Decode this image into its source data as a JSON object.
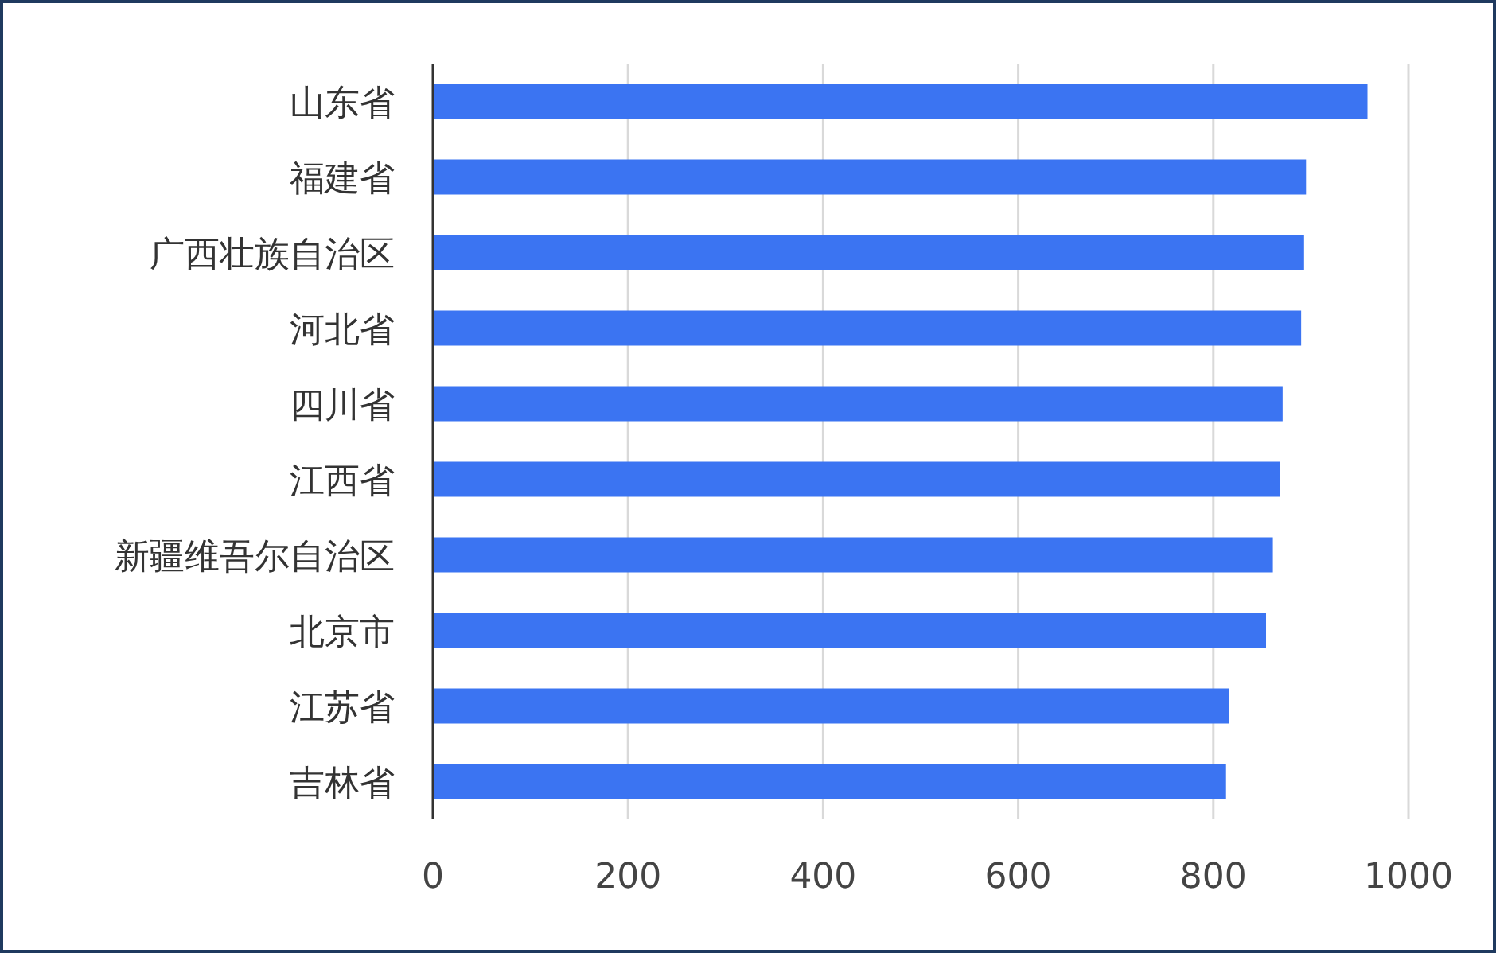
{
  "chart_data": {
    "type": "bar",
    "orientation": "horizontal",
    "categories": [
      "山东省",
      "福建省",
      "广西壮族自治区",
      "河北省",
      "四川省",
      "江西省",
      "新疆维吾尔自治区",
      "北京市",
      "江苏省",
      "吉林省"
    ],
    "values": [
      958,
      895,
      893,
      890,
      871,
      868,
      861,
      854,
      816,
      813
    ],
    "color": "#3b74f2",
    "xlim": [
      0,
      1000
    ],
    "xticks": [
      0,
      200,
      400,
      600,
      800,
      1000
    ],
    "grid": "x"
  }
}
